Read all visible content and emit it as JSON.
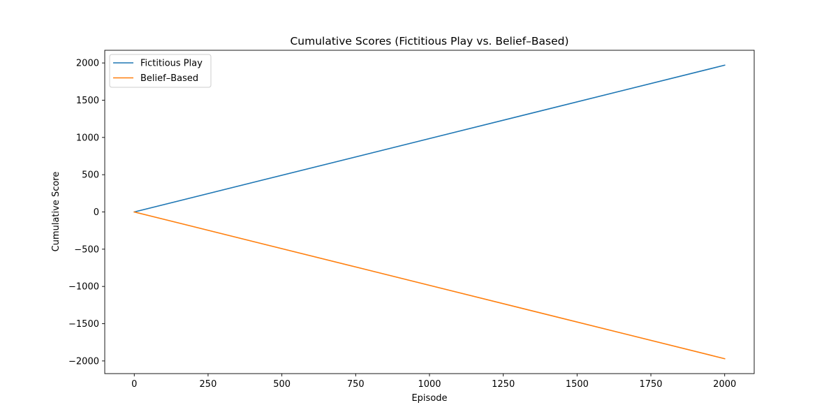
{
  "chart_data": {
    "type": "line",
    "title": "Cumulative Scores (Fictitious Play vs. Belief–Based)",
    "xlabel": "Episode",
    "ylabel": "Cumulative Score",
    "xlim": [
      -100,
      2100
    ],
    "ylim": [
      -2170,
      2170
    ],
    "xticks": [
      0,
      250,
      500,
      750,
      1000,
      1250,
      1500,
      1750,
      2000
    ],
    "xtick_labels": [
      "0",
      "250",
      "500",
      "750",
      "1000",
      "1250",
      "1500",
      "1750",
      "2000"
    ],
    "yticks": [
      -2000,
      -1500,
      -1000,
      -500,
      0,
      500,
      1000,
      1500,
      2000
    ],
    "ytick_labels": [
      "−2000",
      "−1500",
      "−1000",
      "−500",
      "0",
      "500",
      "1000",
      "1500",
      "2000"
    ],
    "grid": false,
    "legend_position": "upper left",
    "series": [
      {
        "name": "Fictitious Play",
        "color": "#1f77b4",
        "x": [
          0,
          2000
        ],
        "y": [
          0,
          1970
        ]
      },
      {
        "name": "Belief–Based",
        "color": "#ff7f0e",
        "x": [
          0,
          2000
        ],
        "y": [
          0,
          -1970
        ]
      }
    ]
  }
}
